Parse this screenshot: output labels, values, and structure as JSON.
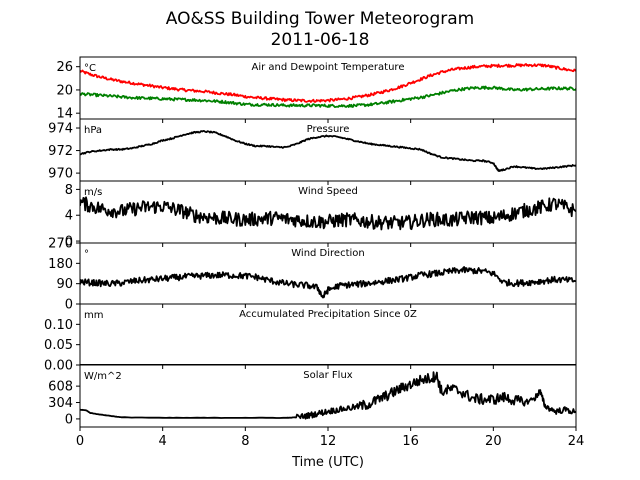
{
  "chart_data": {
    "type": "line",
    "title": "AO&SS Building Tower Meteorogram",
    "subtitle": "2011-06-18",
    "xlabel": "Time (UTC)",
    "xlim": [
      0,
      24
    ],
    "xticks": [
      0,
      4,
      8,
      12,
      16,
      20,
      24
    ],
    "xtick_labels": [
      "0",
      "4",
      "8",
      "12",
      "16",
      "20",
      "24"
    ],
    "panels": [
      {
        "title": "Air and Dewpoint Temperature",
        "unit": "°C",
        "ylim": [
          12.5,
          28.5
        ],
        "yticks": [
          14,
          20,
          26
        ],
        "ytick_labels": [
          "14",
          "20",
          "26"
        ],
        "series": [
          {
            "color": "#ff0000",
            "x": [
              0,
              0.5,
              1,
              1.5,
              2,
              2.5,
              3,
              3.5,
              4,
              4.5,
              5,
              5.5,
              6,
              6.5,
              7,
              7.5,
              8,
              8.5,
              9,
              9.5,
              10,
              10.5,
              11,
              11.5,
              12,
              12.5,
              13,
              13.5,
              14,
              14.5,
              15,
              15.5,
              16,
              16.5,
              17,
              17.5,
              18,
              18.5,
              19,
              19.5,
              20,
              20.5,
              21,
              21.5,
              22,
              22.5,
              23,
              23.5,
              24
            ],
            "y": [
              24.9,
              24.0,
              23.3,
              22.7,
              22.2,
              21.8,
              21.4,
              21.0,
              20.6,
              20.3,
              20.0,
              19.8,
              19.6,
              19.3,
              19.0,
              18.7,
              18.3,
              18.0,
              17.8,
              17.6,
              17.4,
              17.3,
              17.2,
              17.2,
              17.3,
              17.5,
              17.8,
              18.2,
              18.7,
              19.3,
              20.0,
              20.8,
              21.8,
              22.8,
              23.8,
              24.6,
              25.2,
              25.6,
              25.9,
              26.1,
              26.2,
              26.3,
              26.3,
              26.4,
              26.4,
              26.3,
              25.8,
              25.3,
              24.9
            ]
          },
          {
            "color": "#008000",
            "x": [
              0,
              0.5,
              1,
              1.5,
              2,
              2.5,
              3,
              3.5,
              4,
              4.5,
              5,
              5.5,
              6,
              6.5,
              7,
              7.5,
              8,
              8.5,
              9,
              9.5,
              10,
              10.5,
              11,
              11.5,
              12,
              12.5,
              13,
              13.5,
              14,
              14.5,
              15,
              15.5,
              16,
              16.5,
              17,
              17.5,
              18,
              18.5,
              19,
              19.5,
              20,
              20.5,
              21,
              21.5,
              22,
              22.5,
              23,
              23.5,
              24
            ],
            "y": [
              19.0,
              18.8,
              18.6,
              18.4,
              18.2,
              18.0,
              17.9,
              17.8,
              17.7,
              17.6,
              17.5,
              17.4,
              17.3,
              17.1,
              16.9,
              16.6,
              16.3,
              16.2,
              16.2,
              16.1,
              16.0,
              16.0,
              16.0,
              16.0,
              15.9,
              15.9,
              15.9,
              16.0,
              16.2,
              16.5,
              16.9,
              17.3,
              17.7,
              18.1,
              18.6,
              19.2,
              19.8,
              20.2,
              20.5,
              20.6,
              20.6,
              20.3,
              20.0,
              20.1,
              20.2,
              20.3,
              20.4,
              20.4,
              20.3
            ]
          }
        ]
      },
      {
        "title": "Pressure",
        "unit": "hPa",
        "ylim": [
          969.3,
          974.8
        ],
        "yticks": [
          970,
          972,
          974
        ],
        "ytick_labels": [
          "970",
          "972",
          "974"
        ],
        "series": [
          {
            "color": "#000000",
            "x": [
              0,
              0.5,
              1,
              1.5,
              2,
              2.5,
              3,
              3.5,
              4,
              4.5,
              5,
              5.5,
              6,
              6.5,
              7,
              7.5,
              8,
              8.5,
              9,
              9.5,
              10,
              10.5,
              11,
              11.5,
              12,
              12.5,
              13,
              13.5,
              14,
              14.5,
              15,
              15.5,
              16,
              16.5,
              17,
              17.5,
              18,
              18.5,
              19,
              19.5,
              20,
              20.25,
              20.5,
              21,
              21.5,
              22,
              22.5,
              23,
              23.5,
              24
            ],
            "y": [
              971.7,
              971.9,
              972.0,
              972.1,
              972.1,
              972.2,
              972.4,
              972.6,
              972.9,
              973.1,
              973.4,
              973.6,
              973.7,
              973.6,
              973.3,
              972.9,
              972.6,
              972.4,
              972.4,
              972.3,
              972.3,
              972.6,
              973.0,
              973.2,
              973.3,
              973.2,
              973.0,
              972.8,
              972.6,
              972.5,
              972.4,
              972.3,
              972.2,
              972.1,
              971.7,
              971.4,
              971.3,
              971.2,
              971.1,
              971.1,
              970.9,
              970.2,
              970.3,
              970.6,
              970.5,
              970.4,
              970.4,
              970.5,
              970.6,
              970.7
            ]
          }
        ]
      },
      {
        "title": "Wind Speed",
        "unit": "m/s",
        "ylim": [
          -0.3,
          9.3
        ],
        "yticks": [
          0,
          4,
          8
        ],
        "ytick_labels": [
          "0",
          "4",
          "8"
        ],
        "series": [
          {
            "color": "#000000",
            "x": [
              0,
              0.5,
              1,
              1.5,
              2,
              2.5,
              3,
              3.5,
              4,
              4.5,
              5,
              5.5,
              6,
              6.5,
              7,
              7.5,
              8,
              8.5,
              9,
              9.5,
              10,
              10.5,
              11,
              11.5,
              12,
              12.5,
              13,
              13.5,
              14,
              14.5,
              15,
              15.5,
              16,
              16.5,
              17,
              17.5,
              18,
              18.5,
              19,
              19.5,
              20,
              20.5,
              21,
              21.5,
              22,
              22.5,
              23,
              23.5,
              24
            ],
            "y": [
              6.0,
              5.5,
              5.0,
              4.8,
              4.6,
              4.9,
              5.2,
              5.3,
              5.4,
              5.0,
              4.6,
              4.0,
              3.8,
              3.6,
              3.5,
              3.4,
              3.3,
              3.4,
              3.5,
              3.6,
              3.4,
              3.3,
              3.1,
              3.0,
              3.0,
              3.2,
              3.3,
              3.2,
              3.0,
              2.9,
              2.8,
              2.8,
              2.9,
              3.2,
              3.4,
              3.3,
              3.2,
              3.5,
              3.7,
              3.6,
              3.5,
              3.9,
              4.3,
              4.7,
              5.0,
              5.4,
              5.8,
              5.2,
              4.6
            ]
          }
        ]
      },
      {
        "title": "Wind Direction",
        "unit": "°",
        "ylim": [
          0,
          270
        ],
        "yticks": [
          0,
          90,
          180,
          270
        ],
        "ytick_labels": [
          "0",
          "90",
          "180",
          "270"
        ],
        "series": [
          {
            "color": "#000000",
            "x": [
              0,
              0.5,
              1,
              1.5,
              2,
              2.5,
              3,
              3.5,
              4,
              4.5,
              5,
              5.5,
              6,
              6.5,
              7,
              7.5,
              8,
              8.5,
              9,
              9.5,
              10,
              10.5,
              11,
              11.5,
              11.75,
              12,
              12.5,
              13,
              13.5,
              14,
              14.5,
              15,
              15.5,
              16,
              16.5,
              17,
              17.5,
              18,
              18.5,
              19,
              19.5,
              20,
              20.5,
              21,
              21.5,
              22,
              22.5,
              23,
              23.5,
              24
            ],
            "y": [
              98,
              95,
              92,
              90,
              93,
              100,
              105,
              108,
              112,
              116,
              120,
              123,
              125,
              127,
              128,
              126,
              124,
              120,
              108,
              98,
              90,
              85,
              82,
              72,
              30,
              62,
              80,
              85,
              88,
              92,
              98,
              104,
              110,
              118,
              128,
              133,
              138,
              145,
              150,
              148,
              145,
              135,
              96,
              92,
              94,
              98,
              103,
              108,
              106,
              102
            ]
          }
        ]
      },
      {
        "title": "Accumulated Precipitation Since 0Z",
        "unit": "mm",
        "ylim": [
          0,
          0.15
        ],
        "yticks": [
          0,
          0.05,
          0.1
        ],
        "ytick_labels": [
          "0.00",
          "0.05",
          "0.10"
        ],
        "series": [
          {
            "color": "#000000",
            "x": [
              0,
              24
            ],
            "y": [
              0,
              0
            ]
          }
        ]
      },
      {
        "title": "Solar Flux",
        "unit": "W/m^2",
        "ylim": [
          -150,
          1000
        ],
        "yticks": [
          0,
          304,
          608
        ],
        "ytick_labels": [
          "0",
          "304",
          "608"
        ],
        "series": [
          {
            "color": "#000000",
            "x": [
              0,
              0.3,
              0.5,
              1,
              1.5,
              2,
              4,
              6,
              8,
              10,
              10.5,
              11,
              11.5,
              12,
              12.5,
              13,
              13.5,
              14,
              14.5,
              15,
              15.5,
              16,
              16.5,
              17,
              17.25,
              17.5,
              18,
              18.5,
              19,
              19.5,
              20,
              20.5,
              21,
              21.5,
              22,
              22.25,
              22.5,
              23,
              23.5,
              24
            ],
            "y": [
              170,
              160,
              110,
              80,
              55,
              30,
              20,
              20,
              20,
              20,
              30,
              60,
              100,
              140,
              170,
              200,
              230,
              280,
              370,
              460,
              560,
              640,
              720,
              760,
              810,
              500,
              560,
              490,
              380,
              360,
              360,
              400,
              350,
              300,
              380,
              520,
              240,
              140,
              170,
              120
            ]
          }
        ]
      }
    ]
  }
}
